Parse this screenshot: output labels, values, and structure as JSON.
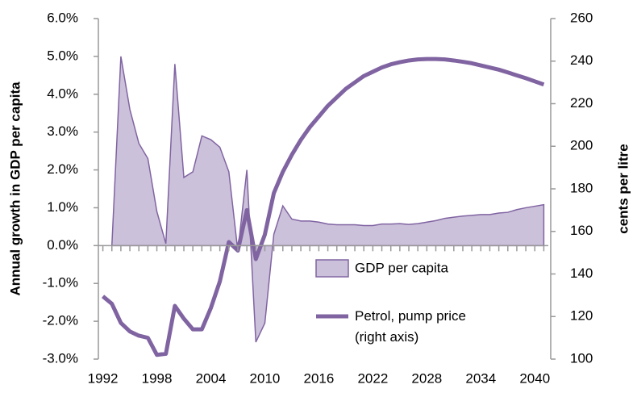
{
  "chart_data": {
    "type": "combo",
    "x": [
      1992,
      1993,
      1994,
      1995,
      1996,
      1997,
      1998,
      1999,
      2000,
      2001,
      2002,
      2003,
      2004,
      2005,
      2006,
      2007,
      2008,
      2009,
      2010,
      2011,
      2012,
      2013,
      2014,
      2015,
      2016,
      2017,
      2018,
      2019,
      2020,
      2021,
      2022,
      2023,
      2024,
      2025,
      2026,
      2027,
      2028,
      2029,
      2030,
      2031,
      2032,
      2033,
      2034,
      2035,
      2036,
      2037,
      2038,
      2039,
      2040,
      2041
    ],
    "series": [
      {
        "name": "GDP per capita",
        "type": "area",
        "color": "#8064a2",
        "fill": "#ccc1da",
        "values": [
          null,
          0.0,
          5.0,
          3.6,
          2.7,
          2.3,
          0.9,
          0.05,
          4.8,
          1.8,
          1.95,
          2.9,
          2.8,
          2.6,
          1.95,
          -0.15,
          2.0,
          -2.55,
          -2.05,
          0.3,
          1.05,
          0.7,
          0.65,
          0.65,
          0.62,
          0.57,
          0.55,
          0.55,
          0.55,
          0.53,
          0.53,
          0.57,
          0.57,
          0.58,
          0.56,
          0.58,
          0.62,
          0.66,
          0.72,
          0.75,
          0.78,
          0.8,
          0.82,
          0.82,
          0.86,
          0.88,
          0.95,
          1.0,
          1.04,
          1.08
        ]
      },
      {
        "name": "Petrol, pump price (right axis)",
        "type": "line",
        "axis": "y2",
        "color": "#8064a2",
        "values": [
          129.5,
          126,
          117,
          113,
          111,
          110,
          102,
          102.5,
          125,
          119,
          114,
          114,
          124,
          136.5,
          155,
          151,
          170,
          147,
          158.5,
          178,
          188,
          196,
          203,
          209,
          214,
          219,
          223,
          227,
          230,
          233,
          235,
          237,
          238.5,
          239.5,
          240.3,
          240.8,
          241,
          241,
          240.8,
          240.3,
          239.7,
          239,
          238,
          237,
          236,
          234.7,
          233.3,
          232,
          230.5,
          229
        ]
      }
    ],
    "y_label": "Annual growth in GDP per capita",
    "y2_label": "cents per litre",
    "xlim": [
      1991.5,
      2041.5
    ],
    "xticks": [
      1992,
      1998,
      2004,
      2010,
      2016,
      2022,
      2028,
      2034,
      2040
    ],
    "ylim": [
      -3,
      6
    ],
    "yticks": [
      {
        "value": -3,
        "label": "-3.0%"
      },
      {
        "value": -2,
        "label": "-2.0%"
      },
      {
        "value": -1,
        "label": "-1.0%"
      },
      {
        "value": 0,
        "label": "0.0%"
      },
      {
        "value": 1,
        "label": "1.0%"
      },
      {
        "value": 2,
        "label": "2.0%"
      },
      {
        "value": 3,
        "label": "3.0%"
      },
      {
        "value": 4,
        "label": "4.0%"
      },
      {
        "value": 5,
        "label": "5.0%"
      },
      {
        "value": 6,
        "label": "6.0%"
      }
    ],
    "y2lim": [
      100,
      260
    ],
    "y2ticks": [
      100,
      120,
      140,
      160,
      180,
      200,
      220,
      240,
      260
    ],
    "legend": "center-right"
  }
}
